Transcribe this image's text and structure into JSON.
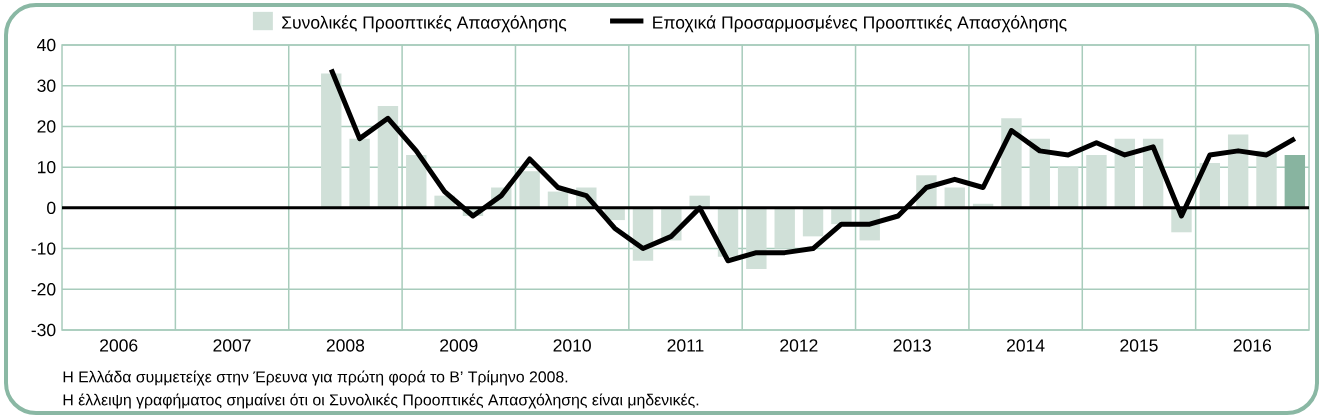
{
  "chart_data": {
    "type": "bar",
    "x": [
      2008.375,
      2008.625,
      2008.875,
      2009.125,
      2009.375,
      2009.625,
      2009.875,
      2010.125,
      2010.375,
      2010.625,
      2010.875,
      2011.125,
      2011.375,
      2011.625,
      2011.875,
      2012.125,
      2012.375,
      2012.625,
      2012.875,
      2013.125,
      2013.375,
      2013.625,
      2013.875,
      2014.125,
      2014.375,
      2014.625,
      2014.875,
      2015.125,
      2015.375,
      2015.625,
      2015.875,
      2016.125,
      2016.375,
      2016.625,
      2016.875
    ],
    "series": [
      {
        "name": "Συνολικές Προοπτικές Απασχόλησης",
        "color": "#d0e0d8",
        "colors": [
          "#d0e0d8",
          "#d0e0d8",
          "#d0e0d8",
          "#d0e0d8",
          "#d0e0d8",
          "#d0e0d8",
          "#d0e0d8",
          "#d0e0d8",
          "#d0e0d8",
          "#d0e0d8",
          "#d0e0d8",
          "#d0e0d8",
          "#d0e0d8",
          "#d0e0d8",
          "#d0e0d8",
          "#d0e0d8",
          "#d0e0d8",
          "#d0e0d8",
          "#d0e0d8",
          "#d0e0d8",
          "#d0e0d8",
          "#d0e0d8",
          "#d0e0d8",
          "#d0e0d8",
          "#d0e0d8",
          "#d0e0d8",
          "#d0e0d8",
          "#d0e0d8",
          "#d0e0d8",
          "#d0e0d8",
          "#d0e0d8",
          "#d0e0d8",
          "#d0e0d8",
          "#d0e0d8",
          "#88b4a0"
        ],
        "values": [
          33,
          17,
          25,
          13,
          3,
          -2,
          5,
          9,
          4,
          5,
          -3,
          -13,
          -8,
          3,
          -12,
          -15,
          -10,
          -7,
          -4,
          -8,
          0,
          8,
          5,
          1,
          22,
          17,
          10,
          13,
          17,
          17,
          -6,
          11,
          18,
          14,
          13
        ]
      },
      {
        "name": "Εποχικά Προσαρμοσμένες Προοπτικές Απασχόλησης",
        "type": "line",
        "color": "#000000",
        "values": [
          34,
          17,
          22,
          14,
          4,
          -2,
          3,
          12,
          5,
          3,
          -5,
          -10,
          -7,
          0,
          -13,
          -11,
          -11,
          -10,
          -4,
          -4,
          -2,
          5,
          7,
          5,
          19,
          14,
          13,
          16,
          13,
          15,
          -2,
          13,
          14,
          13,
          17
        ]
      }
    ],
    "xlim": [
      2006,
      2017
    ],
    "xticks": [
      {
        "value": 2006.5,
        "label": "2006"
      },
      {
        "value": 2007.5,
        "label": "2007"
      },
      {
        "value": 2008.5,
        "label": "2008"
      },
      {
        "value": 2009.5,
        "label": "2009"
      },
      {
        "value": 2010.5,
        "label": "2010"
      },
      {
        "value": 2011.5,
        "label": "2011"
      },
      {
        "value": 2012.5,
        "label": "2012"
      },
      {
        "value": 2013.5,
        "label": "2013"
      },
      {
        "value": 2014.5,
        "label": "2014"
      },
      {
        "value": 2015.5,
        "label": "2015"
      },
      {
        "value": 2016.5,
        "label": "2016"
      },
      {
        "value": 2007,
        "label": null
      },
      {
        "value": 2008,
        "label": null
      },
      {
        "value": 2009,
        "label": null
      },
      {
        "value": 2010,
        "label": null
      },
      {
        "value": 2011,
        "label": null
      },
      {
        "value": 2012,
        "label": null
      },
      {
        "value": 2013,
        "label": null
      },
      {
        "value": 2014,
        "label": null
      },
      {
        "value": 2015,
        "label": null
      },
      {
        "value": 2016,
        "label": null
      }
    ],
    "ylim": [
      -30,
      40
    ],
    "yticks": [
      -30,
      -20,
      -10,
      0,
      10,
      20,
      30,
      40
    ],
    "grid": true,
    "legend": "top",
    "ref_lines": [
      {
        "axis": "y",
        "value": 0,
        "color": "#000000"
      }
    ],
    "annotations": [
      "Η Ελλάδα συμμετείχε στην Έρευνα για πρώτη φορά το Β’ Τρίμηνο 2008.",
      "Η έλλειψη γραφήματος σημαίνει ότι οι Συνολικές Προοπτικές Απασχόλησης είναι μηδενικές."
    ]
  }
}
